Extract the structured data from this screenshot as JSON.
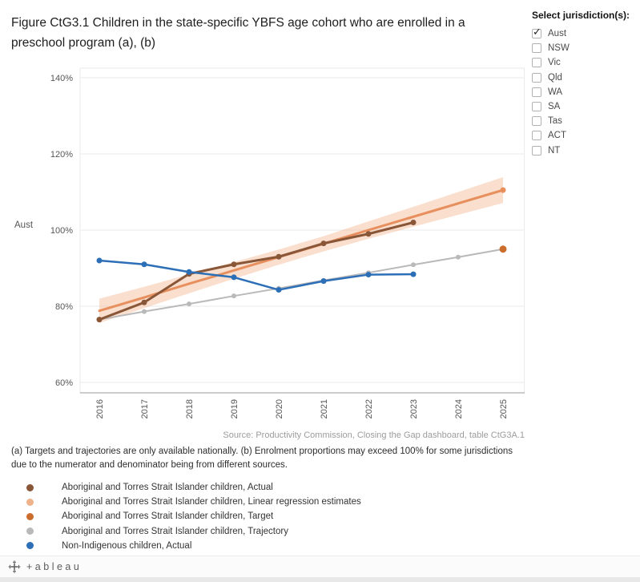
{
  "title": "Figure CtG3.1 Children in the state-specific YBFS age cohort who are enrolled in a preschool program (a), (b)",
  "jurisdiction_selector": {
    "label": "Select jurisdiction(s):",
    "options": [
      {
        "label": "Aust",
        "checked": true
      },
      {
        "label": "NSW",
        "checked": false
      },
      {
        "label": "Vic",
        "checked": false
      },
      {
        "label": "Qld",
        "checked": false
      },
      {
        "label": "WA",
        "checked": false
      },
      {
        "label": "SA",
        "checked": false
      },
      {
        "label": "Tas",
        "checked": false
      },
      {
        "label": "ACT",
        "checked": false
      },
      {
        "label": "NT",
        "checked": false
      }
    ]
  },
  "chart_data": {
    "type": "line",
    "row_label": "Aust",
    "x_years": [
      2016,
      2017,
      2018,
      2019,
      2020,
      2021,
      2022,
      2023,
      2024,
      2025
    ],
    "yticks": [
      60,
      80,
      100,
      120,
      140
    ],
    "ylim": [
      57,
      143
    ],
    "y_unit": "%",
    "grid": "horizontal",
    "series": [
      {
        "id": "indigenous_actual",
        "name": "Aboriginal and Torres Strait Islander children, Actual",
        "color": "#8a5638",
        "width": 3,
        "start_year": 2016,
        "values": [
          76.5,
          81.0,
          88.5,
          91.0,
          93.0,
          96.5,
          99.0,
          102.0
        ]
      },
      {
        "id": "regression",
        "name": "Aboriginal and Torres Strait Islander children, Linear regression estimates",
        "color": "#e88f5e",
        "band_color": "#f2b28a",
        "width": 3,
        "start_year": 2016,
        "values": [
          78.8,
          82.3,
          85.9,
          89.4,
          92.9,
          96.4,
          100.0,
          103.5,
          107.0,
          110.5
        ],
        "band_lower": [
          75.6,
          79.5,
          83.4,
          87.2,
          90.9,
          94.4,
          97.7,
          100.9,
          104.0,
          107.1
        ],
        "band_upper": [
          82.0,
          85.1,
          88.4,
          91.6,
          94.9,
          98.4,
          102.3,
          106.1,
          110.0,
          113.9
        ]
      },
      {
        "id": "target",
        "name": "Aboriginal and Torres Strait Islander children, Target",
        "color": "#cb6d2d",
        "start_year": 2025,
        "values": [
          95.0
        ]
      },
      {
        "id": "trajectory",
        "name": "Aboriginal and Torres Strait Islander children, Trajectory",
        "color": "#b9b9b9",
        "width": 2,
        "start_year": 2016,
        "values": [
          76.5,
          78.6,
          80.6,
          82.7,
          84.7,
          86.8,
          88.8,
          90.9,
          92.9,
          95.0
        ]
      },
      {
        "id": "non_indigenous_actual",
        "name": "Non-Indigenous children, Actual",
        "color": "#2c6fb7",
        "width": 2.5,
        "start_year": 2016,
        "values": [
          92.0,
          91.0,
          89.0,
          87.6,
          84.3,
          86.6,
          88.3,
          88.4
        ]
      }
    ]
  },
  "source": "Source: Productivity Commission, Closing the Gap dashboard, table CtG3A.1",
  "footnote": "(a) Targets and trajectories are only available nationally. (b) Enrolment proportions may exceed 100% for some jurisdictions due to the numerator and denominator being from different sources.",
  "legend": [
    {
      "label": "Aboriginal and Torres Strait Islander children, Actual",
      "color": "#8a5638"
    },
    {
      "label": "Aboriginal and Torres Strait Islander children, Linear regression estimates",
      "color": "#f0b28a"
    },
    {
      "label": "Aboriginal and Torres Strait Islander children, Target",
      "color": "#cb6d2d"
    },
    {
      "label": "Aboriginal and Torres Strait Islander children, Trajectory",
      "color": "#b9b9b9"
    },
    {
      "label": "Non-Indigenous children, Actual",
      "color": "#2c6fb7"
    }
  ],
  "footer": {
    "logo_text": "+ableau"
  }
}
